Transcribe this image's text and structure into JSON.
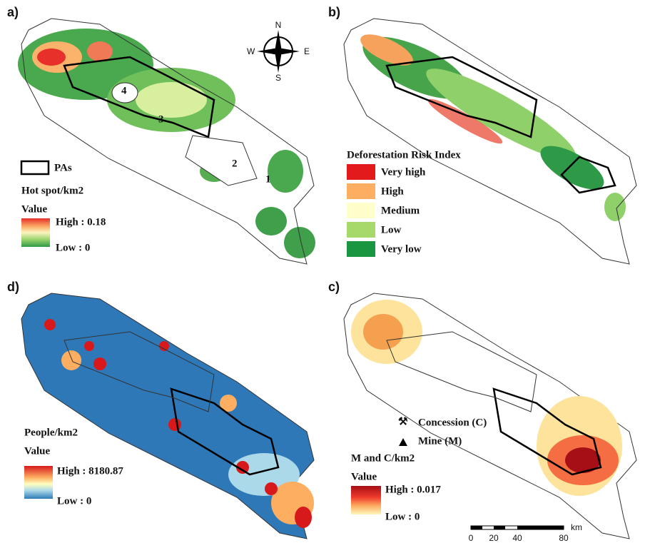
{
  "panels": {
    "a": {
      "label": "a)",
      "pas": "PAs",
      "layer": "Hot spot/km2",
      "value": "Value",
      "high": "High : 0.18",
      "low": "Low : 0",
      "area_labels": [
        "1",
        "2",
        "3",
        "4"
      ],
      "compass": {
        "n": "N",
        "s": "S",
        "e": "E",
        "w": "W"
      }
    },
    "b": {
      "label": "b)",
      "legend_title": "Deforestation Risk Index",
      "classes": [
        "Very high",
        "High",
        "Medium",
        "Low",
        "Very low"
      ]
    },
    "d": {
      "label": "d)",
      "layer": "People/km2",
      "value": "Value",
      "high": "High : 8180.87",
      "low": "Low : 0"
    },
    "c": {
      "label": "c)",
      "concession": "Concession (C)",
      "mine": "Mine (M)",
      "layer": "M and C/km2",
      "value": "Value",
      "high": "High : 0.017",
      "low": "Low : 0",
      "scale_unit": "km",
      "scale_ticks": [
        "0",
        "20",
        "40",
        "80"
      ]
    }
  }
}
